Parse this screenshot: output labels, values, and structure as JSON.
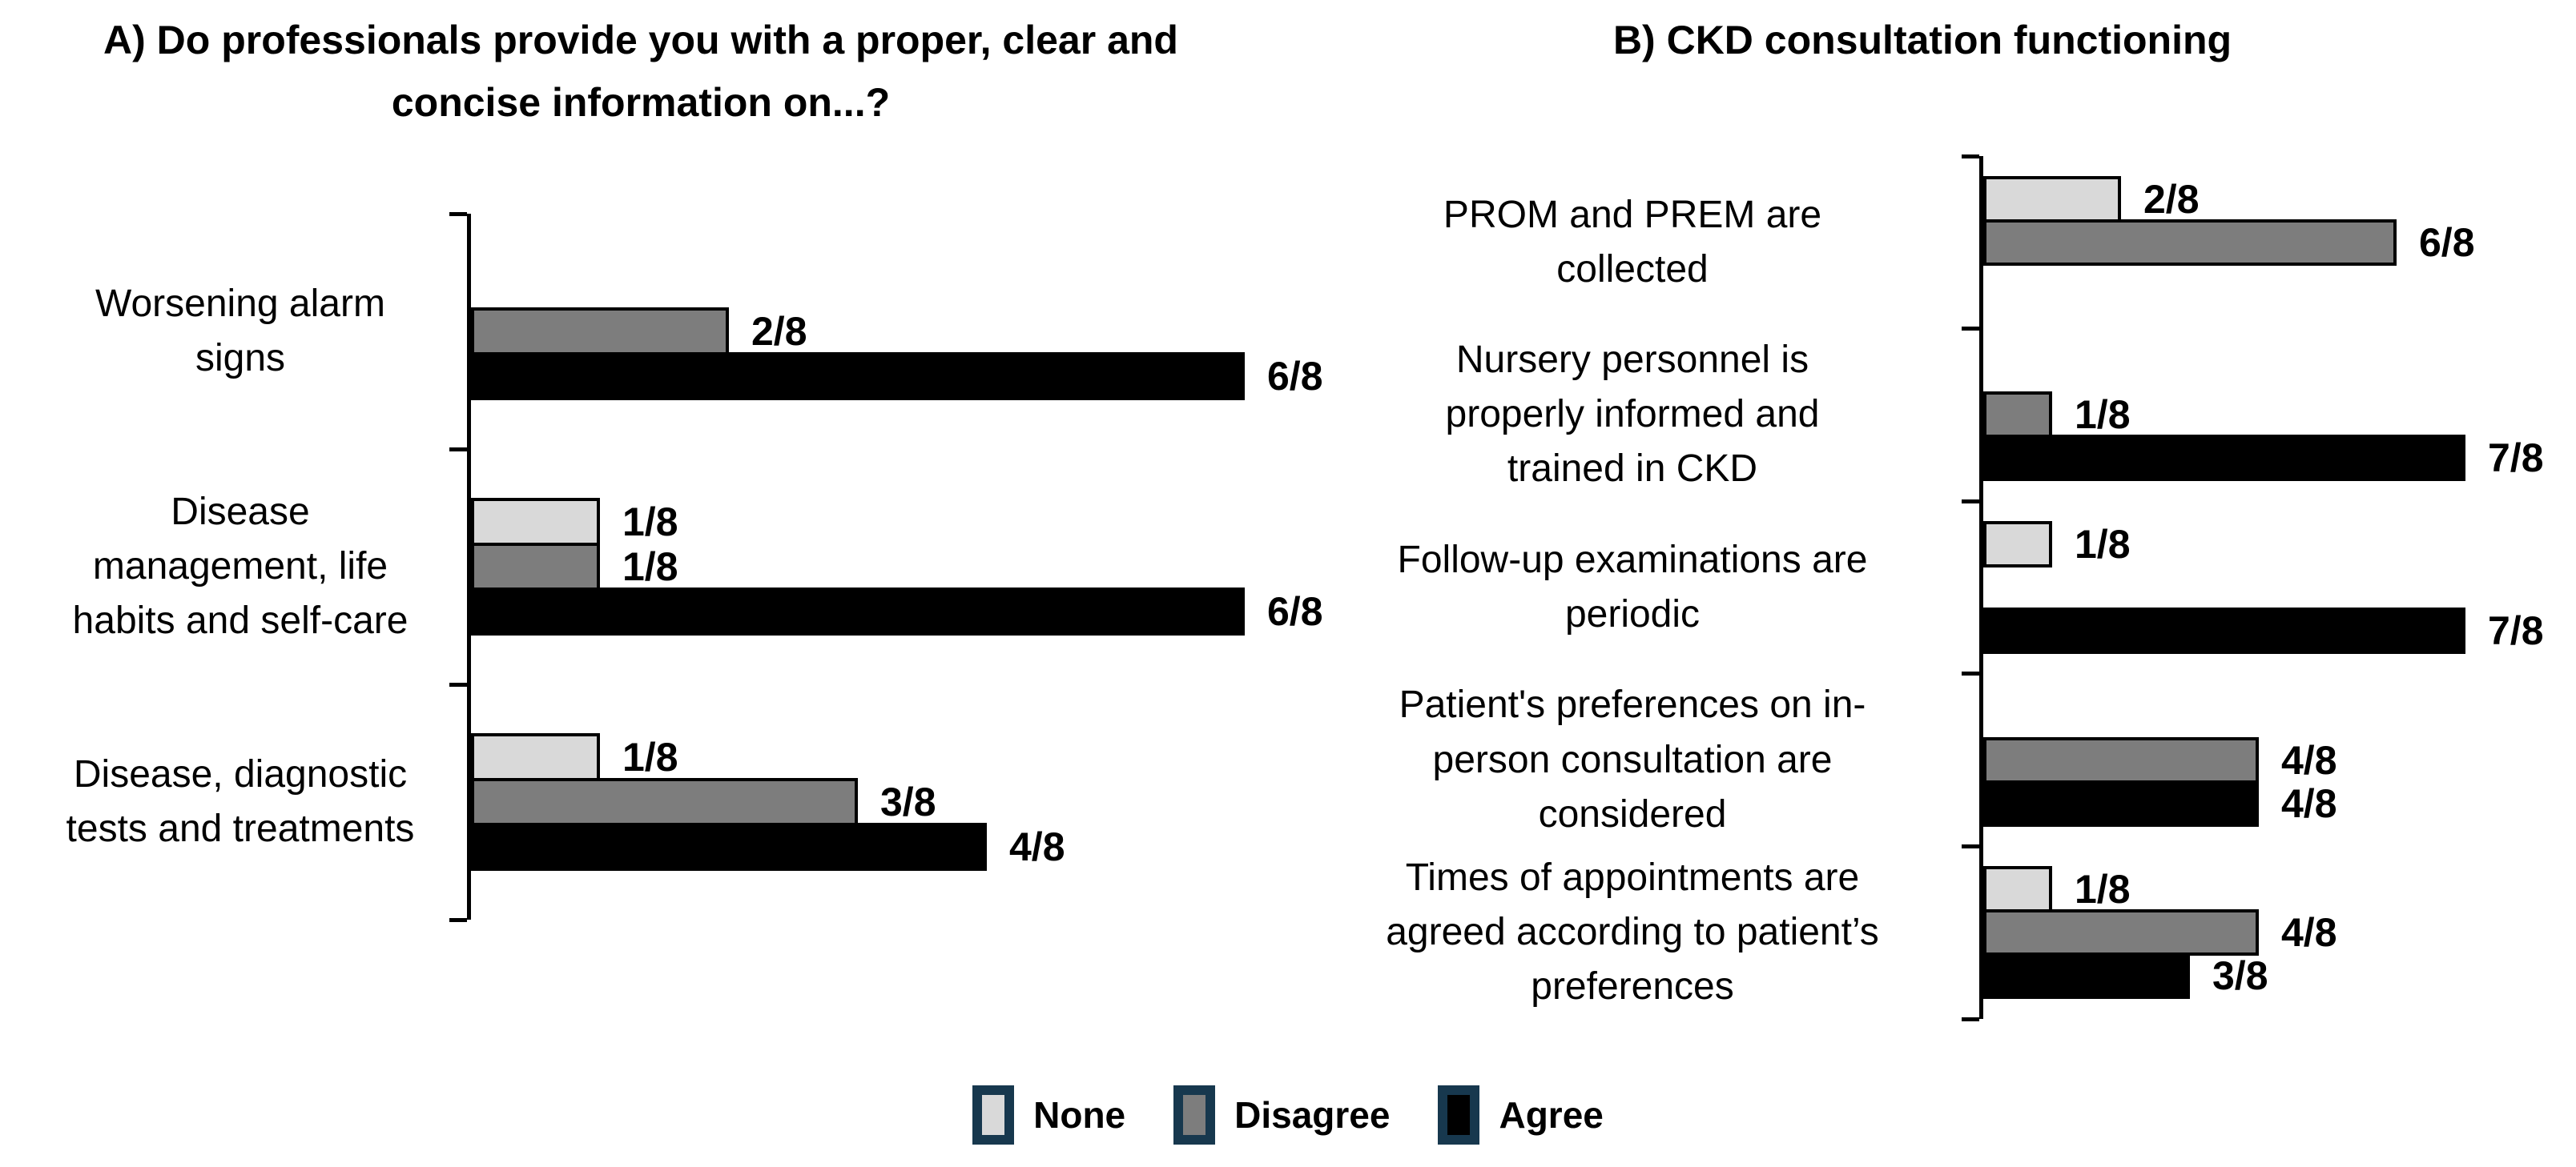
{
  "chart_data": [
    {
      "id": "A",
      "type": "bar",
      "orientation": "horizontal",
      "title": "A) Do professionals provide you with a proper, clear and\nconcise information on...?",
      "x_axis": {
        "min": 0,
        "max": 8
      },
      "grid": false,
      "series_names": [
        "None",
        "Disagree",
        "Agree"
      ],
      "series_colors": [
        "#d9d9d9",
        "#7d7d7d",
        "#000000"
      ],
      "categories": [
        {
          "label": "Worsening alarm\nsigns",
          "values": [
            0,
            2,
            6
          ],
          "value_labels": [
            "",
            "2/8",
            "6/8"
          ]
        },
        {
          "label": "Disease\nmanagement, life\nhabits and self-care",
          "values": [
            1,
            1,
            6
          ],
          "value_labels": [
            "1/8",
            "1/8",
            "6/8"
          ]
        },
        {
          "label": "Disease, diagnostic\ntests and treatments",
          "values": [
            1,
            3,
            4
          ],
          "value_labels": [
            "1/8",
            "3/8",
            "4/8"
          ]
        }
      ]
    },
    {
      "id": "B",
      "type": "bar",
      "orientation": "horizontal",
      "title": "B) CKD consultation functioning",
      "x_axis": {
        "min": 0,
        "max": 8
      },
      "grid": false,
      "series_names": [
        "None",
        "Disagree",
        "Agree"
      ],
      "series_colors": [
        "#d9d9d9",
        "#7d7d7d",
        "#000000"
      ],
      "categories": [
        {
          "label": "PROM and PREM are\ncollected",
          "values": [
            2,
            6,
            0
          ],
          "value_labels": [
            "2/8",
            "6/8",
            ""
          ]
        },
        {
          "label": "Nursery personnel is\nproperly informed and\ntrained in CKD",
          "values": [
            0,
            1,
            7
          ],
          "value_labels": [
            "",
            "1/8",
            "7/8"
          ]
        },
        {
          "label": "Follow-up examinations are\nperiodic",
          "values": [
            1,
            0,
            7
          ],
          "value_labels": [
            "1/8",
            "",
            "7/8"
          ]
        },
        {
          "label": "Patient's preferences on in-\nperson consultation are\nconsidered",
          "values": [
            0,
            4,
            4
          ],
          "value_labels": [
            "",
            "4/8",
            "4/8"
          ]
        },
        {
          "label": "Times of appointments are\nagreed according to patient’s\npreferences",
          "values": [
            1,
            4,
            3
          ],
          "value_labels": [
            "1/8",
            "4/8",
            "3/8"
          ]
        }
      ]
    }
  ],
  "legend": {
    "position": "bottom-center",
    "swatch_border_color": "#17384e",
    "items": [
      {
        "label": "None",
        "fill": "#d9d9d9"
      },
      {
        "label": "Disagree",
        "fill": "#7d7d7d"
      },
      {
        "label": "Agree",
        "fill": "#000000"
      }
    ]
  },
  "colors": {
    "background": "#ffffff",
    "axis": "#000000",
    "bar_border": "#000000",
    "text": "#000000"
  }
}
